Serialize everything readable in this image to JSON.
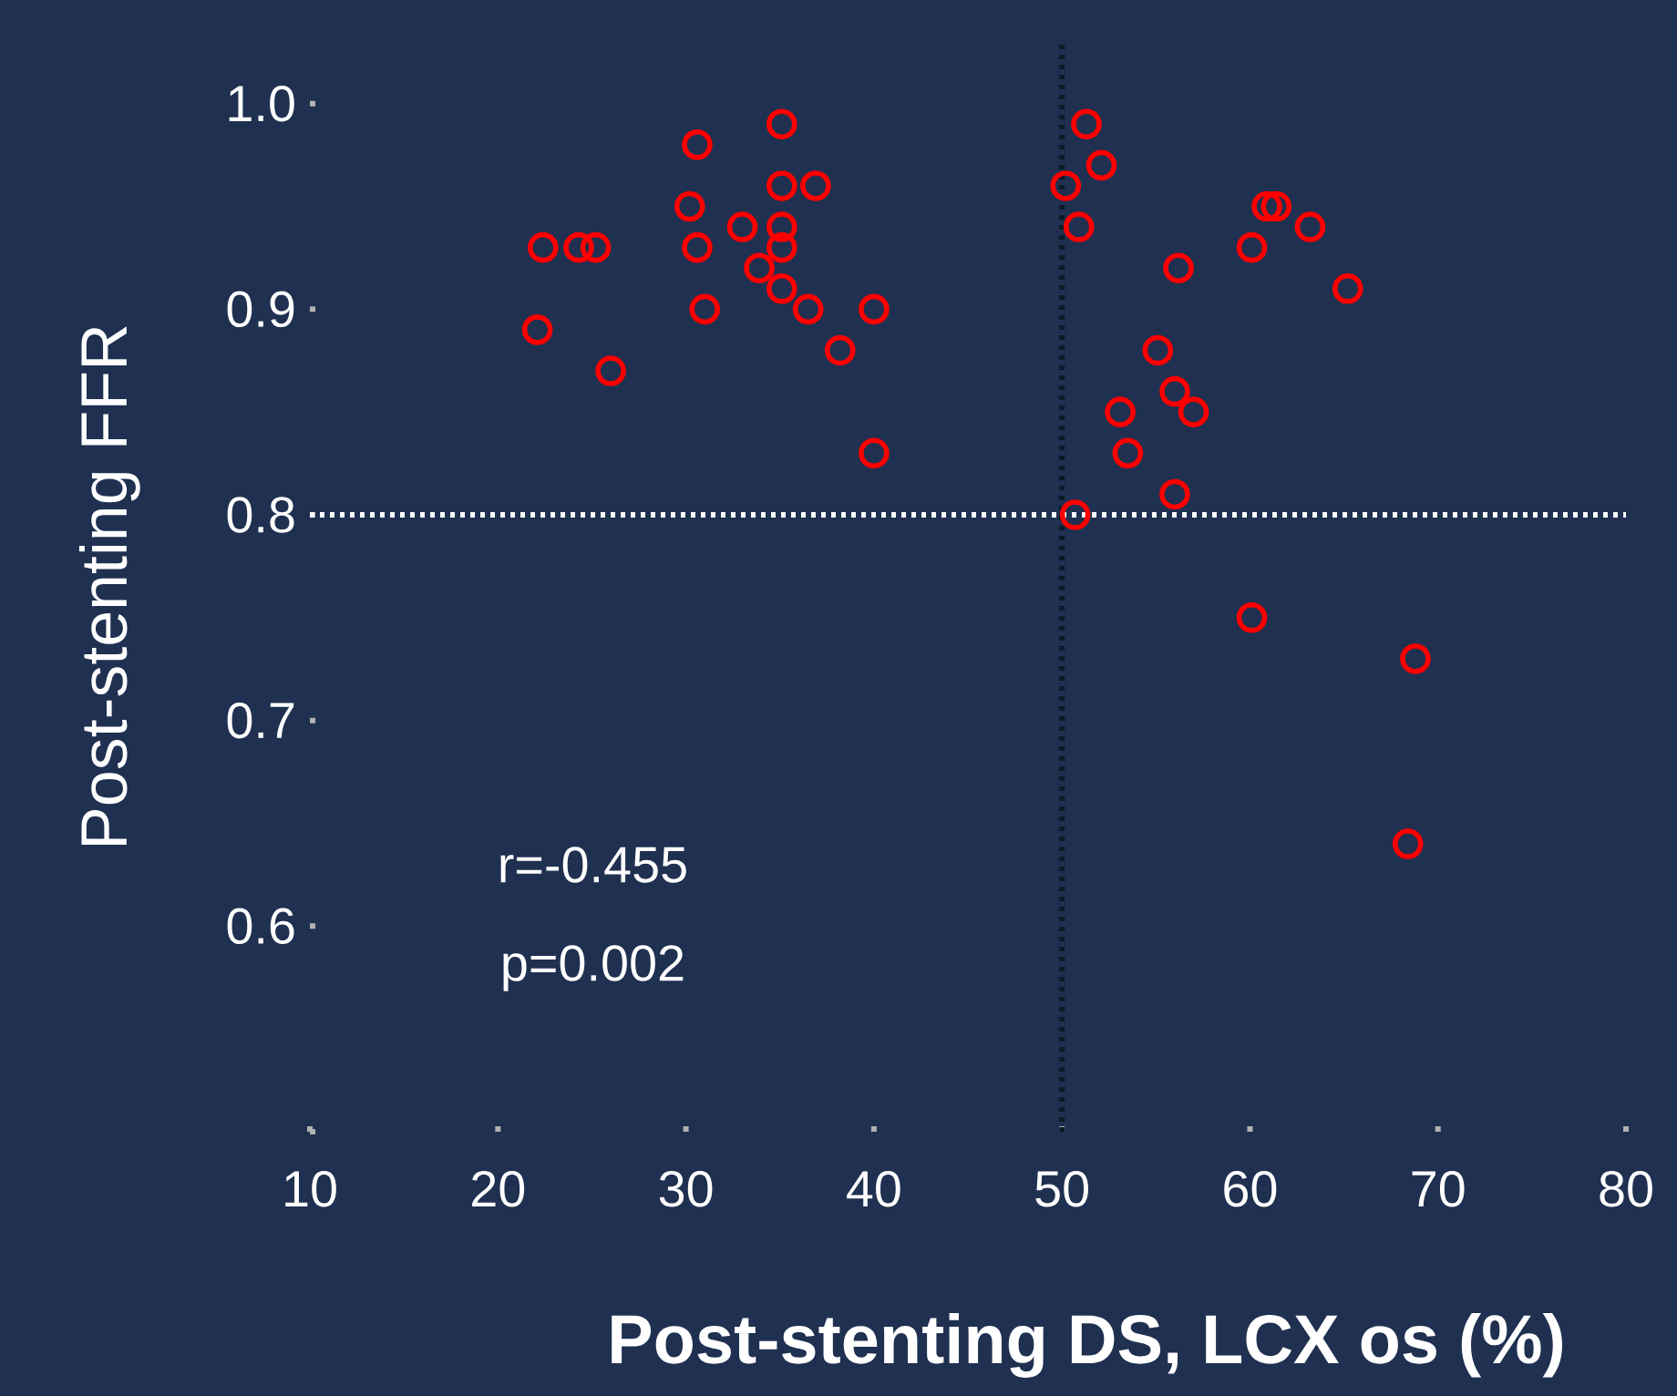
{
  "chart_data": {
    "type": "scatter",
    "xlabel": "Post-stenting DS, LCX os (%)",
    "ylabel": "Post-stenting FFR",
    "x": [
      22.4,
      24.3,
      25.2,
      22.1,
      26.0,
      30.6,
      30.2,
      30.6,
      31.0,
      35.1,
      35.1,
      36.9,
      33.0,
      35.1,
      35.1,
      33.9,
      35.1,
      36.5,
      40.0,
      38.2,
      40.0,
      51.3,
      52.1,
      50.2,
      50.9,
      60.9,
      61.4,
      63.2,
      60.1,
      56.2,
      65.2,
      55.1,
      56.0,
      57.0,
      53.1,
      53.5,
      56.0,
      50.7,
      60.1,
      68.8,
      68.4
    ],
    "series": [
      {
        "color": "#ff0000",
        "values": [
          0.93,
          0.93,
          0.93,
          0.89,
          0.87,
          0.98,
          0.95,
          0.93,
          0.9,
          0.99,
          0.96,
          0.96,
          0.94,
          0.94,
          0.93,
          0.92,
          0.91,
          0.9,
          0.9,
          0.88,
          0.83,
          0.99,
          0.97,
          0.96,
          0.94,
          0.95,
          0.95,
          0.94,
          0.93,
          0.92,
          0.91,
          0.88,
          0.86,
          0.85,
          0.85,
          0.83,
          0.81,
          0.8,
          0.75,
          0.73,
          0.64
        ]
      }
    ],
    "marker": "circle",
    "xlim": [
      10,
      80
    ],
    "ylim": [
      0.5,
      1.03
    ],
    "xticks": [
      10,
      20,
      30,
      40,
      50,
      60,
      70,
      80
    ],
    "yticks": [
      {
        "value": 0.5,
        "label": null
      },
      0.6,
      0.7,
      0.8,
      0.9,
      {
        "value": 1.0,
        "label": "1.0"
      }
    ],
    "ref_lines": [
      {
        "axis": "y",
        "value": 0.8,
        "color": "#ffffff",
        "line_style": "dotted"
      },
      {
        "axis": "x",
        "value": 50,
        "color": "#0a1a28",
        "line_style": "dotted"
      }
    ],
    "annotations": [
      "r=-0.455",
      "p=0.002"
    ]
  }
}
